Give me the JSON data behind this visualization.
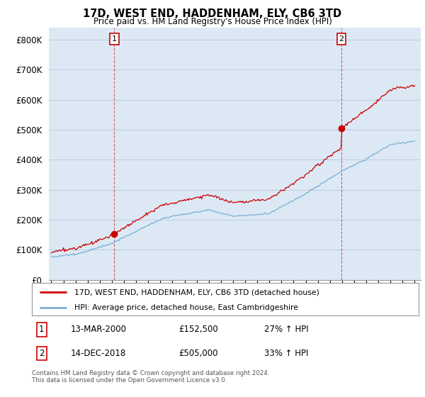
{
  "title": "17D, WEST END, HADDENHAM, ELY, CB6 3TD",
  "subtitle": "Price paid vs. HM Land Registry's House Price Index (HPI)",
  "ylabel_ticks": [
    "£0",
    "£100K",
    "£200K",
    "£300K",
    "£400K",
    "£500K",
    "£600K",
    "£700K",
    "£800K"
  ],
  "ytick_values": [
    0,
    100000,
    200000,
    300000,
    400000,
    500000,
    600000,
    700000,
    800000
  ],
  "ylim": [
    0,
    840000
  ],
  "xlim_start": 1994.8,
  "xlim_end": 2025.5,
  "marker1_x": 2000.2,
  "marker1_y": 152500,
  "marker2_x": 2018.95,
  "marker2_y": 505000,
  "legend_line1": "17D, WEST END, HADDENHAM, ELY, CB6 3TD (detached house)",
  "legend_line2": "HPI: Average price, detached house, East Cambridgeshire",
  "table_row1": [
    "1",
    "13-MAR-2000",
    "£152,500",
    "27% ↑ HPI"
  ],
  "table_row2": [
    "2",
    "14-DEC-2018",
    "£505,000",
    "33% ↑ HPI"
  ],
  "footer": "Contains HM Land Registry data © Crown copyright and database right 2024.\nThis data is licensed under the Open Government Licence v3.0.",
  "red_color": "#cc0000",
  "blue_color": "#7bafd4",
  "chart_bg": "#dce9f5",
  "background_color": "#ffffff",
  "grid_color": "#bbccdd"
}
